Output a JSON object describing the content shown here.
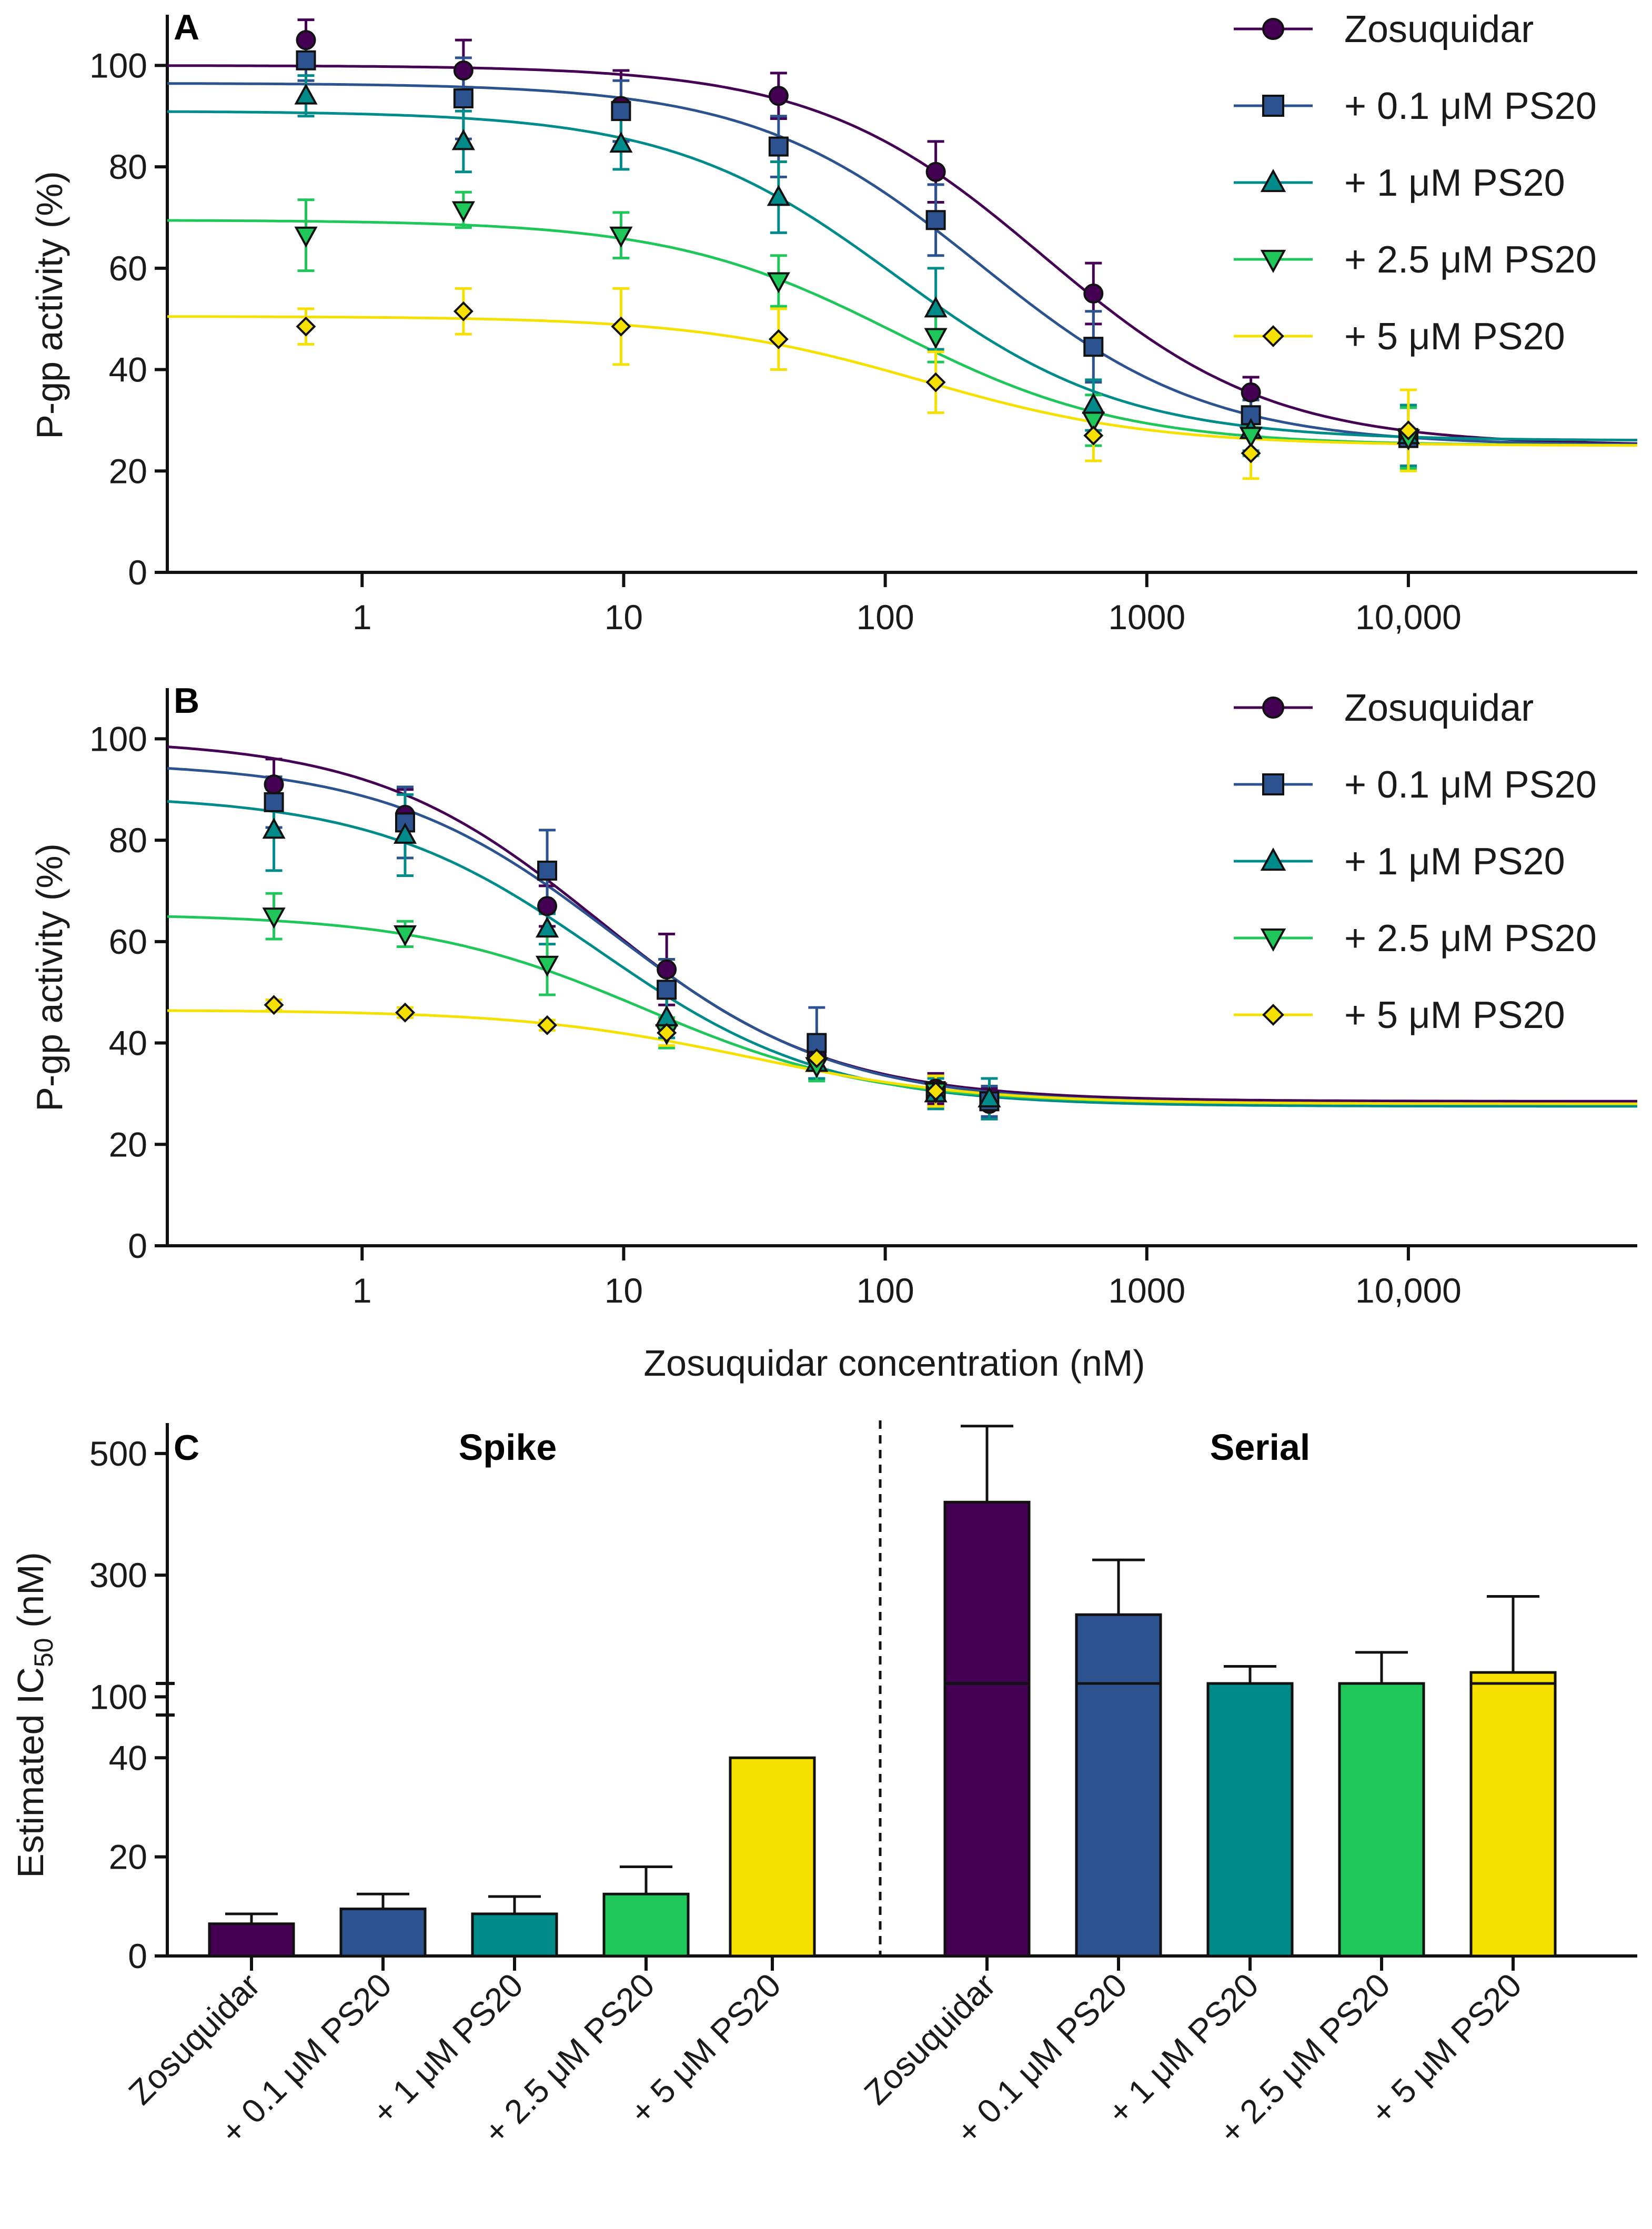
{
  "colors": {
    "zosuquidar": "#440154",
    "ps20_0_1": "#2c538f",
    "ps20_1": "#008b8b",
    "ps20_2_5": "#1fc65a",
    "ps20_5": "#f5e000"
  },
  "chart_data": [
    {
      "panel": "A",
      "type": "scatter",
      "xscale": "log",
      "xlabel": "",
      "ylabel": "P-gp activity (%)",
      "ylim": [
        0,
        110
      ],
      "xlim": [
        0.18,
        75000
      ],
      "yticks": [
        "0",
        "20",
        "40",
        "60",
        "80",
        "100"
      ],
      "xticks": [
        {
          "v": 1,
          "label": "1"
        },
        {
          "v": 10,
          "label": "10"
        },
        {
          "v": 100,
          "label": "100"
        },
        {
          "v": 1000,
          "label": "1000"
        },
        {
          "v": 10000,
          "label": "10,000"
        }
      ],
      "legend": [
        "Zosuquidar",
        "+ 0.1 μM PS20",
        "+ 1 μM PS20",
        "+ 2.5 μM PS20",
        "+ 5 μM PS20"
      ],
      "series": [
        {
          "name": "Zosuquidar",
          "marker": "circle",
          "x": [
            0.61,
            2.44,
            9.77,
            39.1,
            156,
            625,
            2500,
            10000
          ],
          "y": [
            105,
            99,
            92,
            94,
            79,
            55,
            35.5,
            27
          ],
          "err": [
            4,
            6,
            7,
            4.5,
            6,
            6,
            3,
            6
          ],
          "fit": {
            "top": 100,
            "bottom": 25,
            "ic50": 400
          }
        },
        {
          "name": "+ 0.1 μM PS20",
          "marker": "square",
          "x": [
            0.61,
            2.44,
            9.77,
            39.1,
            156,
            625,
            2500,
            10000
          ],
          "y": [
            101,
            93.5,
            91,
            84,
            69.5,
            44.5,
            31,
            26.5
          ],
          "err": [
            4,
            8,
            6,
            6,
            7,
            7,
            3,
            6
          ],
          "fit": {
            "top": 96.5,
            "bottom": 25,
            "ic50": 230
          }
        },
        {
          "name": "+ 1 μM PS20",
          "marker": "triangle-up",
          "x": [
            0.61,
            2.44,
            9.77,
            39.1,
            156,
            625,
            2500,
            10000
          ],
          "y": [
            94,
            85,
            84.5,
            74,
            52,
            33,
            28,
            27
          ],
          "err": [
            4,
            6,
            5,
            7,
            8,
            5,
            4,
            6
          ],
          "fit": {
            "top": 91,
            "bottom": 26,
            "ic50": 110
          }
        },
        {
          "name": "+ 2.5 μM PS20",
          "marker": "triangle-down",
          "x": [
            0.61,
            2.44,
            9.77,
            39.1,
            156,
            625,
            2500,
            10000
          ],
          "y": [
            66.5,
            71.5,
            66.5,
            57.5,
            46.5,
            30,
            27,
            26.5
          ],
          "err": [
            7,
            3.5,
            4.5,
            5,
            5,
            5,
            4,
            6
          ],
          "fit": {
            "top": 69.5,
            "bottom": 25,
            "ic50": 110
          }
        },
        {
          "name": "+ 5 μM PS20",
          "marker": "diamond",
          "x": [
            0.61,
            2.44,
            9.77,
            39.1,
            156,
            625,
            2500,
            10000
          ],
          "y": [
            48.5,
            51.5,
            48.5,
            46,
            37.5,
            27,
            23.5,
            28
          ],
          "err": [
            3.5,
            4.5,
            7.5,
            6,
            6,
            5,
            5,
            8
          ],
          "fit": {
            "top": 50.5,
            "bottom": 25,
            "ic50": 140
          }
        }
      ]
    },
    {
      "panel": "B",
      "type": "scatter",
      "xscale": "log",
      "xlabel": "Zosuquidar concentration (nM)",
      "ylabel": "P-gp activity (%)",
      "ylim": [
        0,
        110
      ],
      "xlim": [
        0.18,
        75000
      ],
      "yticks": [
        "0",
        "20",
        "40",
        "60",
        "80",
        "100"
      ],
      "xticks": [
        {
          "v": 1,
          "label": "1"
        },
        {
          "v": 10,
          "label": "10"
        },
        {
          "v": 100,
          "label": "100"
        },
        {
          "v": 1000,
          "label": "1000"
        },
        {
          "v": 10000,
          "label": "10,000"
        }
      ],
      "legend": [
        "Zosuquidar",
        "+ 0.1 μM PS20",
        "+ 1 μM PS20",
        "+ 2.5 μM PS20",
        "+ 5 μM PS20"
      ],
      "series": [
        {
          "name": "Zosuquidar",
          "marker": "circle",
          "x": [
            0.46,
            1.46,
            5.1,
            14.6,
            54.7,
            156,
            250
          ],
          "y": [
            91,
            85,
            67,
            54.5,
            37.5,
            31,
            28
          ],
          "err": [
            5,
            5,
            4,
            7,
            3,
            3,
            3
          ],
          "fit": {
            "top": 100,
            "bottom": 28.5,
            "ic50": 8
          }
        },
        {
          "name": "+ 0.1 μM PS20",
          "marker": "square",
          "x": [
            0.46,
            1.46,
            5.1,
            14.6,
            54.7,
            156,
            250
          ],
          "y": [
            87.5,
            83.5,
            74,
            50.5,
            40,
            30.5,
            28.5
          ],
          "err": [
            5,
            7,
            8,
            6,
            7,
            3,
            3
          ],
          "fit": {
            "top": 95.5,
            "bottom": 28,
            "ic50": 9
          }
        },
        {
          "name": "+ 1 μM PS20",
          "marker": "triangle-up",
          "x": [
            0.46,
            1.46,
            5.1,
            14.6,
            54.7,
            156,
            250
          ],
          "y": [
            82,
            81,
            62.5,
            45,
            36,
            30,
            29
          ],
          "err": [
            8,
            8,
            3,
            4,
            3,
            3,
            4
          ],
          "fit": {
            "top": 89,
            "bottom": 27.5,
            "ic50": 8
          }
        },
        {
          "name": "+ 2.5 μM PS20",
          "marker": "triangle-down",
          "x": [
            0.46,
            1.46,
            5.1,
            14.6,
            54.7,
            156
          ],
          "y": [
            65,
            61.5,
            55.5,
            42,
            35.5,
            30.5
          ],
          "err": [
            4.5,
            2.5,
            6,
            3,
            3,
            3
          ],
          "fit": {
            "top": 65.5,
            "bottom": 28,
            "ic50": 12
          }
        },
        {
          "name": "+ 5 μM PS20",
          "marker": "diamond",
          "x": [
            0.46,
            1.46,
            5.1,
            14.6,
            54.7,
            156
          ],
          "y": [
            47.5,
            46,
            43.5,
            42,
            37,
            30.5
          ],
          "err": [
            1,
            1,
            1,
            2.5,
            2.5,
            3
          ],
          "fit": {
            "top": 46.5,
            "bottom": 28,
            "ic50": 30
          }
        }
      ]
    },
    {
      "panel": "C",
      "type": "bar",
      "ylabel": "Estimated IC50 (nM)",
      "ylabel_main": "Estimated IC",
      "ylabel_sub": "50",
      "ylabel_end": " (nM)",
      "broken_axis": {
        "lower": [
          0,
          55
        ],
        "upper": [
          70,
          550
        ]
      },
      "yticks_lower": [
        "0",
        "20",
        "40"
      ],
      "yticks_upper": [
        "100",
        "300",
        "500"
      ],
      "groups": [
        "Spike",
        "Serial"
      ],
      "categories": [
        "Zosuquidar",
        "+ 0.1 μM PS20",
        "+ 1 μM PS20",
        "+ 2.5 μM PS20",
        "+ 5 μM PS20"
      ],
      "series": [
        {
          "name": "Spike",
          "values": [
            6.5,
            9.5,
            8.5,
            12.5,
            40
          ],
          "err": [
            2,
            3,
            3.5,
            5.5,
            0
          ]
        },
        {
          "name": "Serial",
          "values": [
            420,
            235,
            110,
            108,
            140
          ],
          "err": [
            125,
            90,
            40,
            65,
            125
          ]
        }
      ]
    }
  ]
}
